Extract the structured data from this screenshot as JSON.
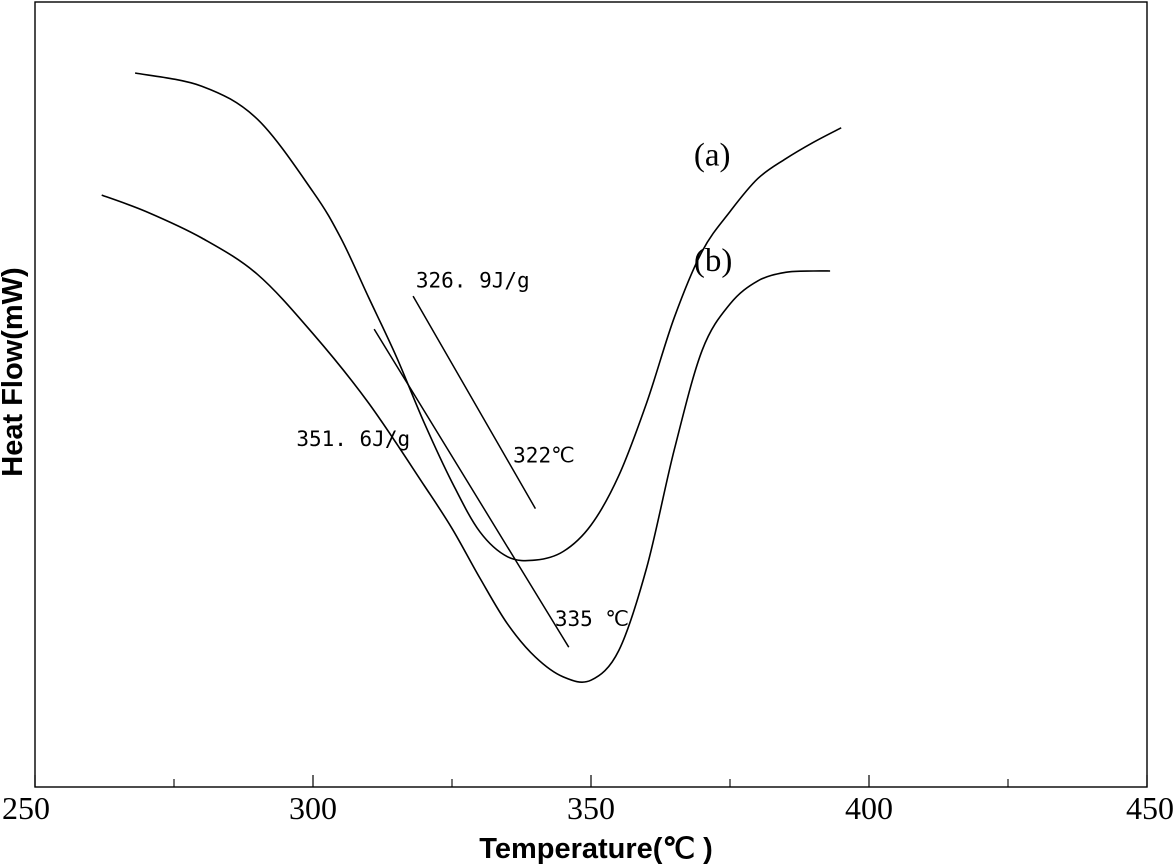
{
  "chart_data": {
    "type": "line",
    "title": "",
    "xlabel": "Temperature(℃ )",
    "ylabel": "Heat Flow(mW)",
    "xlim": [
      250,
      450
    ],
    "x_ticks": [
      "250",
      "300",
      "350",
      "400",
      "450"
    ],
    "x_minor_ticks": [
      275,
      325,
      375,
      425
    ],
    "y_ticks_shown": false,
    "grid": false,
    "legend": "none",
    "series": [
      {
        "name": "(a)",
        "points": [
          [
            268,
            0.95
          ],
          [
            280,
            0.93
          ],
          [
            290,
            0.88
          ],
          [
            300,
            0.77
          ],
          [
            305,
            0.7
          ],
          [
            310,
            0.61
          ],
          [
            315,
            0.52
          ],
          [
            320,
            0.42
          ],
          [
            325,
            0.33
          ],
          [
            330,
            0.255
          ],
          [
            335,
            0.217
          ],
          [
            340,
            0.212
          ],
          [
            345,
            0.225
          ],
          [
            350,
            0.265
          ],
          [
            355,
            0.34
          ],
          [
            360,
            0.45
          ],
          [
            365,
            0.58
          ],
          [
            370,
            0.68
          ],
          [
            375,
            0.74
          ],
          [
            380,
            0.79
          ],
          [
            385,
            0.82
          ],
          [
            390,
            0.845
          ],
          [
            395,
            0.867
          ]
        ]
      },
      {
        "name": "(b)",
        "points": [
          [
            262,
            0.765
          ],
          [
            270,
            0.74
          ],
          [
            280,
            0.7
          ],
          [
            290,
            0.645
          ],
          [
            300,
            0.555
          ],
          [
            310,
            0.45
          ],
          [
            320,
            0.325
          ],
          [
            325,
            0.26
          ],
          [
            330,
            0.185
          ],
          [
            335,
            0.115
          ],
          [
            340,
            0.065
          ],
          [
            345,
            0.035
          ],
          [
            350,
            0.03
          ],
          [
            355,
            0.075
          ],
          [
            360,
            0.2
          ],
          [
            365,
            0.38
          ],
          [
            370,
            0.53
          ],
          [
            375,
            0.6
          ],
          [
            380,
            0.635
          ],
          [
            385,
            0.648
          ],
          [
            390,
            0.65
          ],
          [
            393,
            0.65
          ]
        ]
      }
    ],
    "tangent_lines": [
      {
        "x": [
          318,
          340
        ],
        "y": [
          0.612,
          0.29
        ]
      },
      {
        "x": [
          311,
          346
        ],
        "y": [
          0.562,
          0.08
        ]
      }
    ],
    "annotations": [
      {
        "text": "326. 9J/g",
        "x": 318.5,
        "y": 0.625,
        "kind": "anno"
      },
      {
        "text": "322℃",
        "x": 336,
        "y": 0.36,
        "kind": "anno"
      },
      {
        "text": "351. 6J/g",
        "x": 297,
        "y": 0.385,
        "kind": "anno"
      },
      {
        "text": "335 ℃",
        "x": 343.5,
        "y": 0.112,
        "kind": "anno"
      },
      {
        "text": "(a)",
        "x": 368.5,
        "y": 0.81,
        "kind": "series"
      },
      {
        "text": "(b)",
        "x": 368.5,
        "y": 0.65,
        "kind": "series"
      }
    ]
  }
}
